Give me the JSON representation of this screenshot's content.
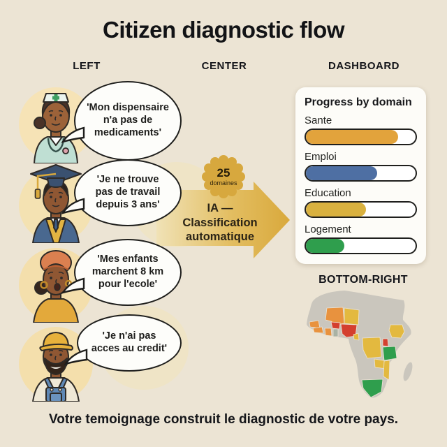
{
  "title": "Citizen diagnostic flow",
  "columns": {
    "left": "LEFT",
    "center": "CENTER",
    "right": "DASHBOARD"
  },
  "testimonials": [
    {
      "speaker": "nurse",
      "quote": "'Mon dispensaire\nn'a pas de\nmedicaments'"
    },
    {
      "speaker": "graduate",
      "quote": "'Je ne trouve\npas de travail\ndepuis 3 ans'"
    },
    {
      "speaker": "mother",
      "quote": "'Mes enfants\nmarchent 8 km\npour l'ecole'"
    },
    {
      "speaker": "farmer",
      "quote": "'Je n'ai pas\nacces au credit'"
    }
  ],
  "flow": {
    "badge_value": "25",
    "badge_unit": "domaines",
    "arrow_label": "IA —\nClassification\nautomatique"
  },
  "dashboard": {
    "title": "Progress by domain",
    "bars": [
      {
        "label": "Sante",
        "value": 84,
        "color": "#E2A33C"
      },
      {
        "label": "Emploi",
        "value": 65,
        "color": "#4E6FA3"
      },
      {
        "label": "Education",
        "value": 55,
        "color": "#D9B13F"
      },
      {
        "label": "Logement",
        "value": 35,
        "color": "#2F9E4D"
      }
    ]
  },
  "map_section": {
    "label": "BOTTOM-RIGHT"
  },
  "footer": "Votre temoignage construit le diagnostic de votre pays.",
  "chart_data": {
    "type": "bar",
    "title": "Progress by domain",
    "orientation": "horizontal",
    "categories": [
      "Sante",
      "Emploi",
      "Education",
      "Logement"
    ],
    "values": [
      84,
      65,
      55,
      35
    ],
    "colors": [
      "#E2A33C",
      "#4E6FA3",
      "#D9B13F",
      "#2F9E4D"
    ],
    "xlim": [
      0,
      100
    ]
  },
  "palette": {
    "background": "#ECE4D4",
    "arrow_gold_light": "#EFDFAE",
    "arrow_gold": "#D9A93C",
    "badge_gold": "#D7A83E",
    "map_base": "#CAC6BD",
    "map_red": "#D4402F",
    "map_orange": "#E8923E",
    "map_yellow": "#E3B93F",
    "map_green": "#2F9E4D"
  }
}
